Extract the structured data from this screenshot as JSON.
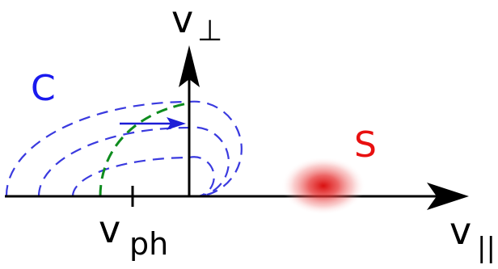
{
  "labels": {
    "v_perp": {
      "base": "v",
      "symbol": "⊥"
    },
    "v_par": {
      "base": "v",
      "sub": "||"
    },
    "v_ph": {
      "base": "v",
      "sub": "ph"
    },
    "c": "C",
    "s": "S"
  },
  "colors": {
    "axis": "#000000",
    "arcs": "#3a3adf",
    "dash_arc": "#0e8c1e",
    "arrow": "#1c1cd6",
    "c_label": "#1a1aee",
    "s_label": "#e81010",
    "blob": "#e01010"
  }
}
